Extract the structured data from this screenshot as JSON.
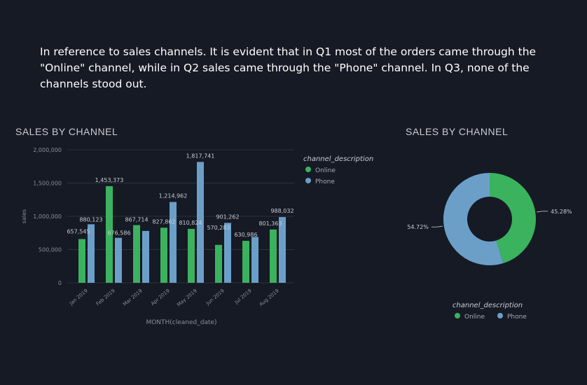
{
  "narrative": "In reference to sales channels. It is evident that in Q1 most of the orders came through the \"Online\" channel, while in Q2 sales came through the \"Phone\" channel. In Q3, none of the channels stood out.",
  "colors": {
    "online": "#3bb25e",
    "phone": "#6b9fc8",
    "background": "#161a25",
    "grid": "#2c303a",
    "axis_text": "#8a8d96"
  },
  "chart_data": [
    {
      "type": "bar",
      "title": "SALES BY CHANNEL",
      "xlabel": "MONTH(cleaned_date)",
      "ylabel": "sales",
      "ylim": [
        0,
        2000000
      ],
      "yticks": [
        "0",
        "500,000",
        "1,000,000",
        "1,500,000",
        "2,000,000"
      ],
      "ytick_values": [
        0,
        500000,
        1000000,
        1500000,
        2000000
      ],
      "categories": [
        "Jan 2019",
        "Feb 2019",
        "Mar 2019",
        "Apr 2019",
        "May 2019",
        "Jun 2019",
        "Jul 2019",
        "Aug 2019"
      ],
      "series": [
        {
          "name": "Online",
          "color": "#3bb25e",
          "values": [
            657545,
            1453373,
            867714,
            827862,
            810824,
            570283,
            630986,
            801363
          ],
          "labels": [
            "657,545",
            "1,453,373",
            "867,714",
            "827,862",
            "810,824",
            "570,283",
            "630,986",
            "801,363"
          ]
        },
        {
          "name": "Phone",
          "color": "#6b9fc8",
          "values": [
            880123,
            676586,
            780000,
            1214962,
            1817741,
            901262,
            690000,
            988032
          ],
          "labels": [
            "880,123",
            "676,586",
            "",
            "1,214,962",
            "1,817,741",
            "901,262",
            "",
            "988,032"
          ]
        }
      ],
      "legend": {
        "title": "channel_description",
        "position": "right",
        "items": [
          "Online",
          "Phone"
        ]
      },
      "grid": true
    },
    {
      "type": "pie",
      "title": "SALES BY CHANNEL",
      "donut": true,
      "slices": [
        {
          "name": "Online",
          "value": 45.28,
          "label": "45.28%",
          "color": "#3bb25e"
        },
        {
          "name": "Phone",
          "value": 54.72,
          "label": "54.72%",
          "color": "#6b9fc8"
        }
      ],
      "legend": {
        "title": "channel_description",
        "position": "bottom",
        "items": [
          "Online",
          "Phone"
        ]
      }
    }
  ]
}
